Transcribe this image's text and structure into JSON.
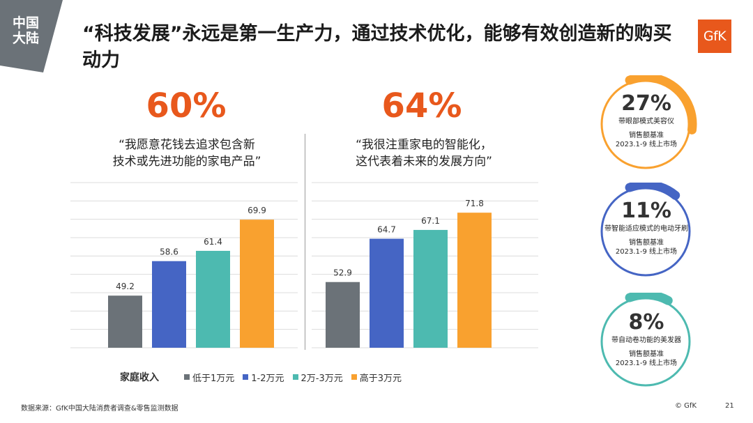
{
  "region_tag": "中国大陆",
  "title": "“科技发展”永远是第一生产力，通过技术优化，能够有效创造新的购买动力",
  "logo_text": "GfK",
  "colors": {
    "accent": "#e8581c",
    "series": [
      "#6b7278",
      "#4565c4",
      "#4dbab0",
      "#f9a12f"
    ]
  },
  "left_panel": {
    "pct": "60%",
    "quote_line1": "“我愿意花钱去追求包含新",
    "quote_line2": "技术或先进功能的家电产品”"
  },
  "right_panel": {
    "pct": "64%",
    "quote_line1": "“我很注重家电的智能化，",
    "quote_line2": "这代表着未来的发展方向”"
  },
  "chart_data": [
    {
      "type": "bar",
      "categories": [
        "低于1万元",
        "1-2万元",
        "2万-3万元",
        "高于3万元"
      ],
      "values": [
        49.2,
        58.6,
        61.4,
        69.9
      ],
      "ylim": [
        35,
        80
      ],
      "grid": true
    },
    {
      "type": "bar",
      "categories": [
        "低于1万元",
        "1-2万元",
        "2万-3万元",
        "高于3万元"
      ],
      "values": [
        52.9,
        64.7,
        67.1,
        71.8
      ],
      "ylim": [
        35,
        80
      ],
      "grid": true
    }
  ],
  "legend": {
    "title": "家庭收入",
    "items": [
      "低于1万元",
      "1-2万元",
      "2万-3万元",
      "高于3万元"
    ]
  },
  "rings": [
    {
      "pct": "27%",
      "value": 0.27,
      "desc": "带眼部模式美容仪",
      "base1": "销售额基准",
      "base2": "2023.1-9 线上市场",
      "color": "#f9a12f"
    },
    {
      "pct": "11%",
      "value": 0.11,
      "desc": "带智能适应模式的电动牙刷",
      "base1": "销售额基准",
      "base2": "2023.1-9 线上市场",
      "color": "#4565c4"
    },
    {
      "pct": "8%",
      "value": 0.08,
      "desc": "带自动卷功能的美发器",
      "base1": "销售额基准",
      "base2": "2023.1-9 线上市场",
      "color": "#4dbab0"
    }
  ],
  "footer": {
    "source": "数据来源：GfK中国大陆消费者调查&零售监测数据",
    "copyright": "© GfK",
    "page": "21"
  }
}
